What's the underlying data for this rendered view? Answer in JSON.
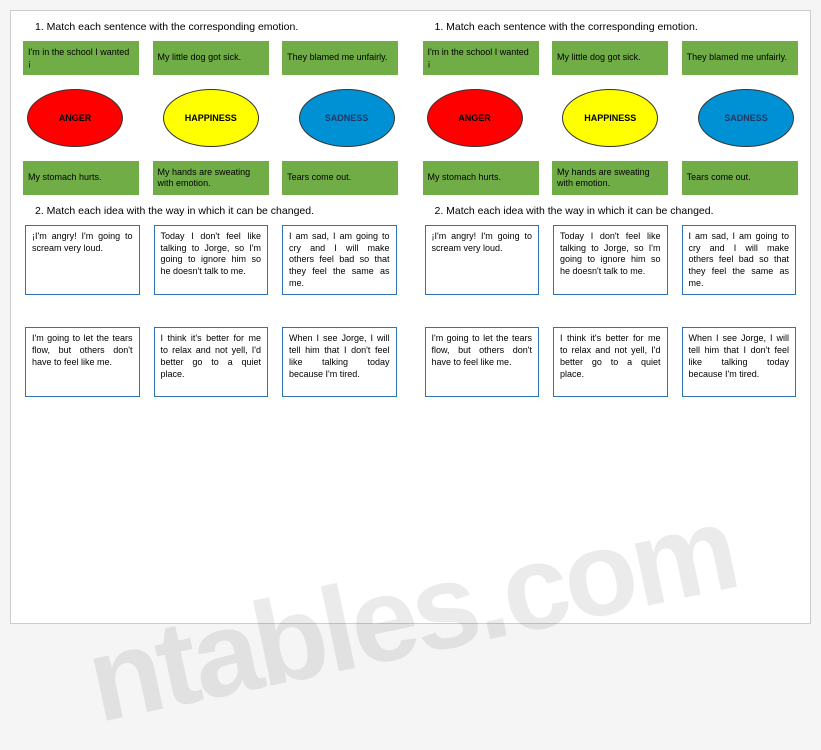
{
  "worksheet": {
    "q1": {
      "heading": "1.   Match each sentence with the corresponding emotion.",
      "top_sentences": [
        "I'm in the school I wanted ¡",
        "My little dog got sick.",
        "They blamed me unfairly."
      ],
      "emotions": [
        {
          "label": "ANGER",
          "bg": "#ff0000",
          "text_color": "#000000"
        },
        {
          "label": "HAPPINESS",
          "bg": "#ffff00",
          "text_color": "#000000"
        },
        {
          "label": "SADNESS",
          "bg": "#0091d5",
          "text_color": "#1f3864"
        }
      ],
      "bottom_sentences": [
        "My stomach hurts.",
        "My hands are sweating with emotion.",
        "Tears come out."
      ],
      "green_box_bg": "#70ad47"
    },
    "q2": {
      "heading": "2.   Match each idea with the way in which it can be changed.",
      "ideas_top": [
        "¡I'm angry! I'm going to scream very loud.",
        "Today I don't feel like talking to Jorge, so I'm going to ignore him so he doesn't talk to me.",
        "I am sad, I am going to cry and I will make others feel bad so that they feel the same as me."
      ],
      "ideas_bottom": [
        "I'm going to let the tears flow, but others don't have to feel like me.",
        "I think it's better for me to relax and not yell, I'd better go to a quiet place.",
        "When I see Jorge, I will tell him that I don't feel like talking today because I'm tired."
      ],
      "box_border": "#2e74b5"
    }
  },
  "watermark": "ntables.com",
  "colors": {
    "page_bg": "#ffffff",
    "body_bg": "#f5f5f5",
    "border": "#cccccc"
  }
}
